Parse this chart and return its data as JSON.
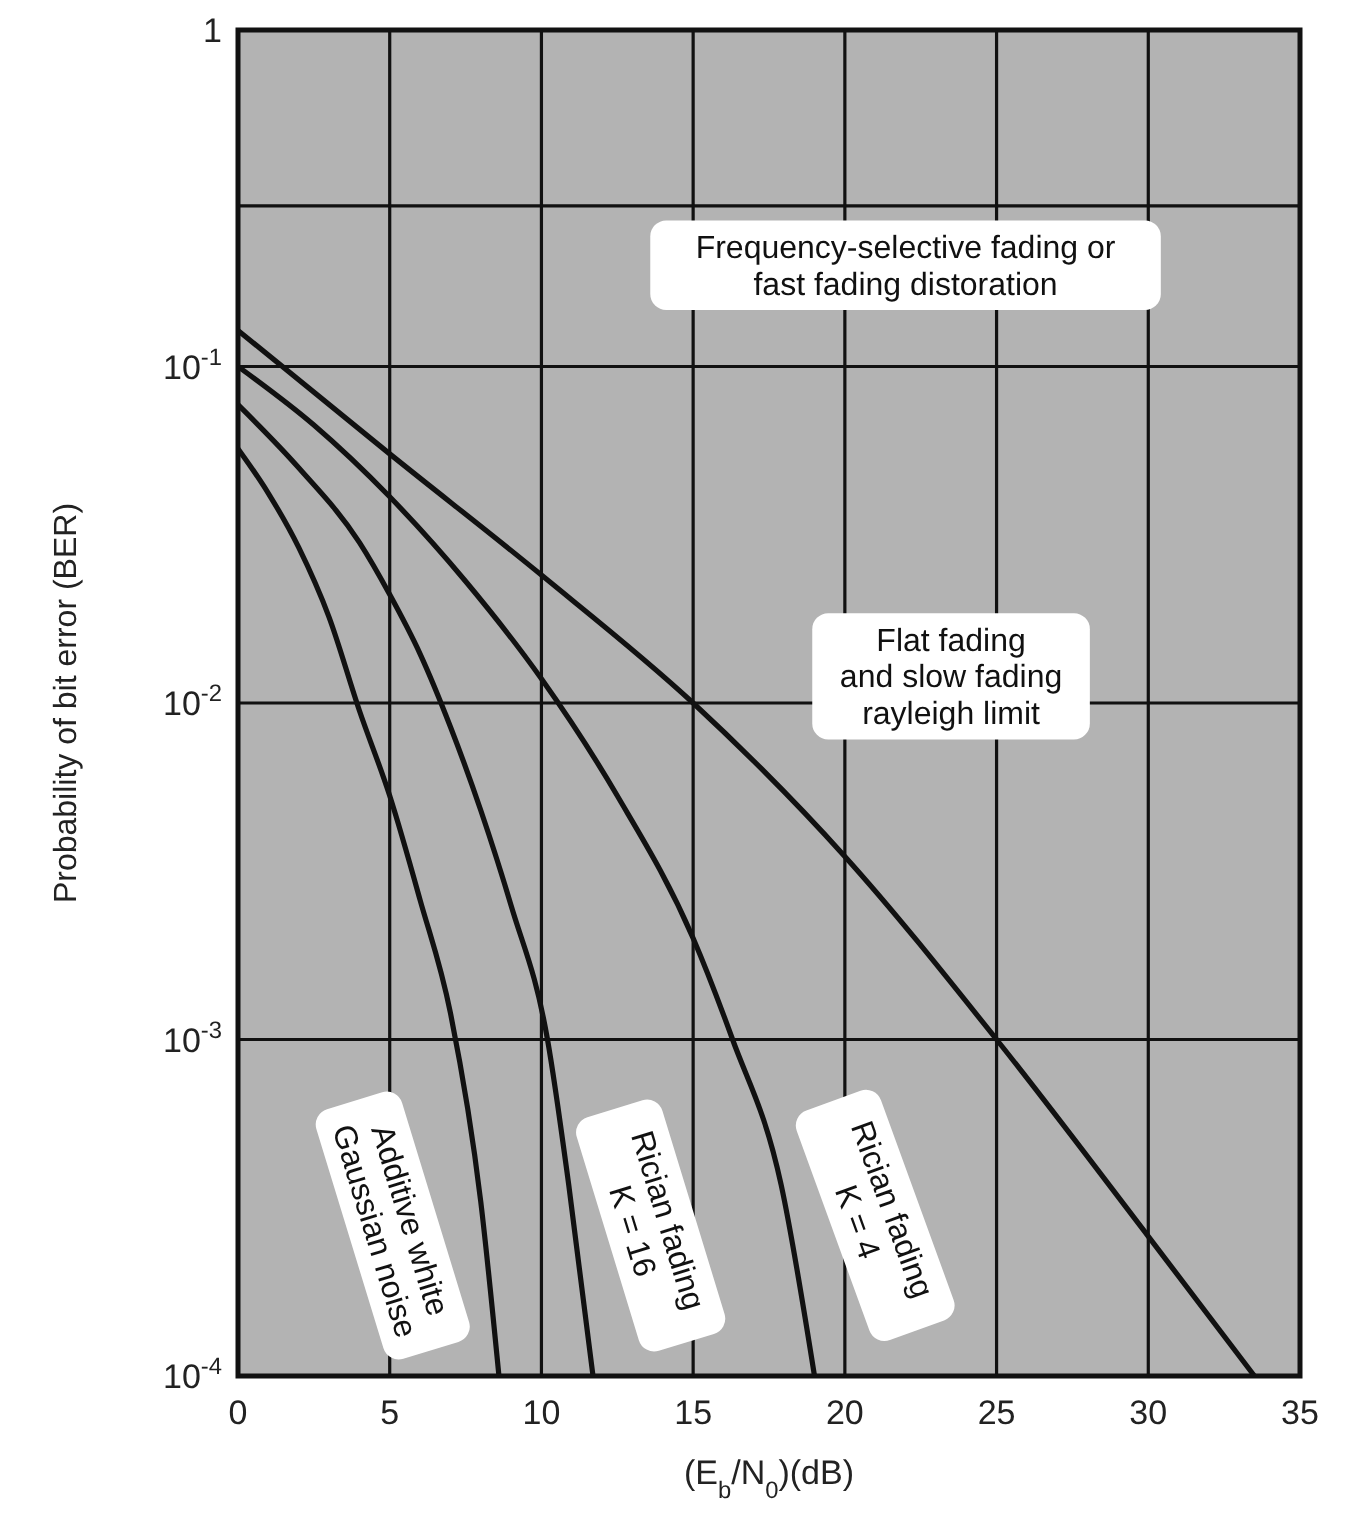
{
  "chart_data": {
    "type": "line",
    "xlabel": "(E$_{b}$/N$_{0}$)(dB)",
    "ylabel": "Probability of bit error (BER)",
    "log": "y",
    "grid": true,
    "marker": "none",
    "line_style": "solid",
    "xlim": [
      0,
      35
    ],
    "xticks": [
      0,
      5,
      10,
      15,
      20,
      25,
      30,
      35
    ],
    "ylim": [
      0.0001,
      1
    ],
    "yticks": [
      {
        "value": 0.0001,
        "label": "10$^{-4}$"
      },
      {
        "value": 0.001,
        "label": "10$^{-3}$"
      },
      {
        "value": 0.01,
        "label": "10$^{-2}$"
      },
      {
        "value": 0.1,
        "label": "10$^{-1}$"
      },
      {
        "value": 0.3,
        "label": null
      },
      1
    ],
    "annotations": [
      "Frequency-selective fading or\nfast fading distoration"
    ],
    "series": [
      {
        "name": "Additive white\nGaussian noise",
        "color": "#111111",
        "x": [
          0,
          1,
          2,
          3,
          4,
          5,
          6,
          7,
          8,
          8.6
        ],
        "values": [
          0.057,
          0.042,
          0.029,
          0.018,
          0.0095,
          0.0053,
          0.0026,
          0.0012,
          0.00033,
          0.0001
        ]
      },
      {
        "name": "Rician fading\nK = 16",
        "color": "#111111",
        "x": [
          0,
          2,
          4,
          5,
          6,
          7,
          8,
          9,
          10.2,
          10.9,
          11.7
        ],
        "values": [
          0.077,
          0.05,
          0.03,
          0.021,
          0.014,
          0.0085,
          0.0048,
          0.0025,
          0.001,
          0.00037,
          0.0001
        ]
      },
      {
        "name": "Rician fading\nK = 4",
        "color": "#111111",
        "x": [
          0,
          2.5,
          5,
          7.5,
          10,
          12.5,
          15,
          16.3,
          17.9,
          19
        ],
        "values": [
          0.1,
          0.067,
          0.041,
          0.023,
          0.0118,
          0.0053,
          0.002,
          0.001,
          0.00037,
          0.0001
        ]
      },
      {
        "name": "Flat fading\nand slow fading\nrayleigh limit",
        "color": "#111111",
        "x": [
          0,
          5,
          10,
          15,
          20,
          25,
          30,
          33.5
        ],
        "values": [
          0.128,
          0.055,
          0.024,
          0.01,
          0.0035,
          0.001,
          0.00026,
          0.0001
        ]
      }
    ]
  }
}
